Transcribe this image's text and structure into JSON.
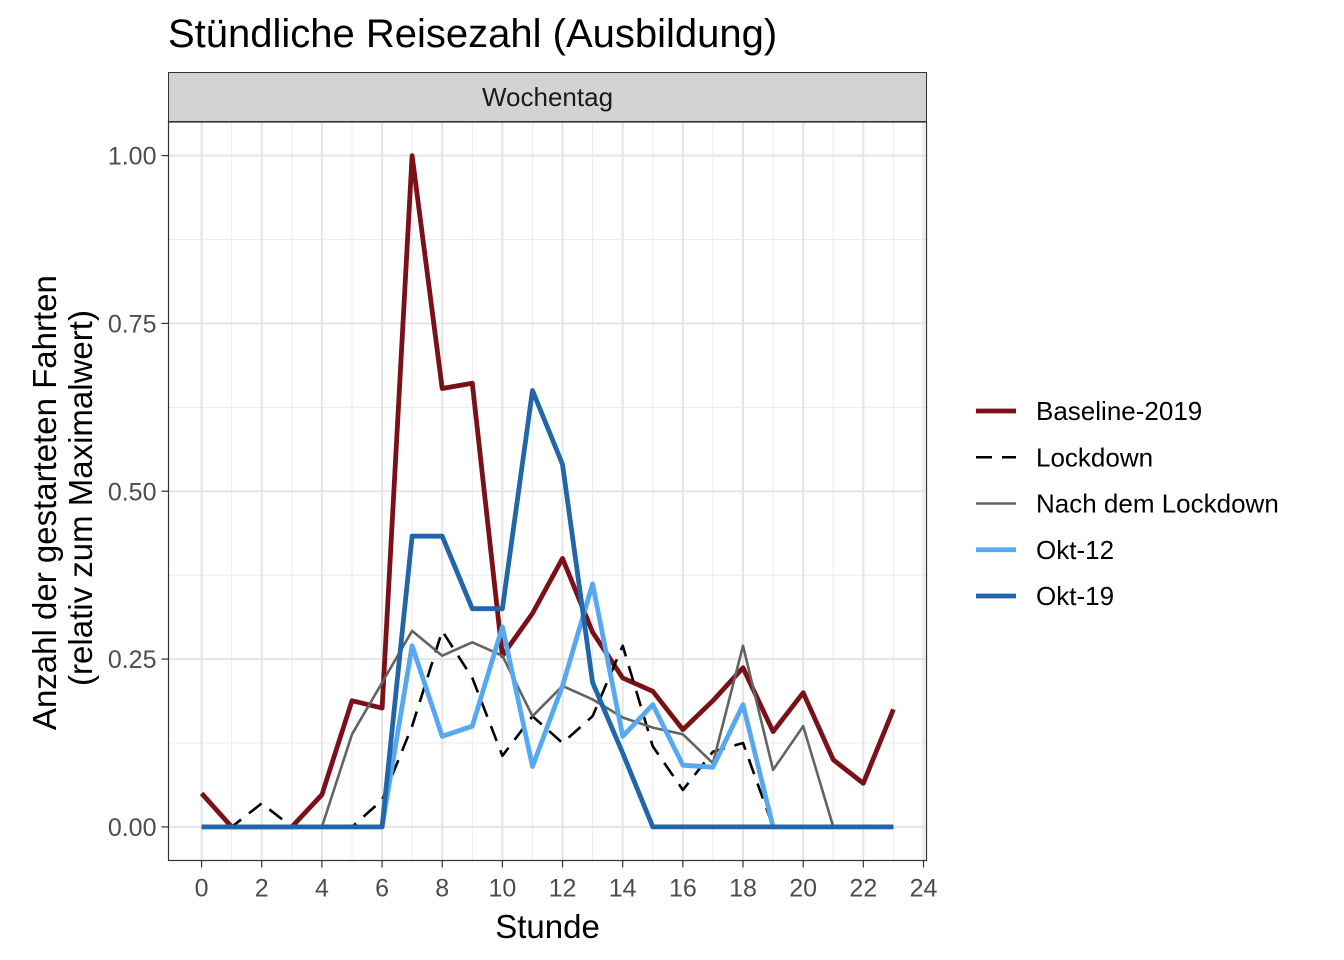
{
  "chart_data": {
    "type": "line",
    "title": "Stündliche Reisezahl (Ausbildung)",
    "facet_label": "Wochentag",
    "xlabel": "Stunde",
    "ylabel_lines": [
      "Anzahl der gestarteten Fahrten",
      "(relativ zum Maximalwert)"
    ],
    "xlim": [
      -1.1,
      24.1
    ],
    "ylim": [
      -0.05,
      1.05
    ],
    "x_ticks": [
      0,
      2,
      4,
      6,
      8,
      10,
      12,
      14,
      16,
      18,
      20,
      22,
      24
    ],
    "y_ticks": [
      0,
      0.25,
      0.5,
      0.75,
      1
    ],
    "y_tick_labels": [
      "0.00",
      "0.25",
      "0.50",
      "0.75",
      "1.00"
    ],
    "grid": true,
    "legend_position": "right",
    "series": [
      {
        "name": "Baseline-2019",
        "color": "#7b1018",
        "style": "solid-thick",
        "points": [
          [
            0,
            0.05
          ],
          [
            1,
            0
          ],
          [
            2,
            0
          ],
          [
            3,
            0
          ],
          [
            4,
            0.048
          ],
          [
            5,
            0.188
          ],
          [
            6,
            0.177
          ],
          [
            7,
            1.0
          ],
          [
            8,
            0.653
          ],
          [
            9,
            0.661
          ],
          [
            10,
            0.255
          ],
          [
            11,
            0.318
          ],
          [
            12,
            0.4
          ],
          [
            13,
            0.29
          ],
          [
            14,
            0.222
          ],
          [
            15,
            0.202
          ],
          [
            16,
            0.145
          ],
          [
            17,
            0.188
          ],
          [
            18,
            0.237
          ],
          [
            19,
            0.142
          ],
          [
            20,
            0.2
          ],
          [
            21,
            0.1
          ],
          [
            22,
            0.065
          ],
          [
            23,
            0.175
          ]
        ]
      },
      {
        "name": "Lockdown",
        "color": "#000000",
        "style": "dashed",
        "points": [
          [
            0,
            0
          ],
          [
            1,
            0
          ],
          [
            2,
            0.035
          ],
          [
            3,
            0
          ],
          [
            4,
            0
          ],
          [
            5,
            0
          ],
          [
            6,
            0.04
          ],
          [
            7,
            0.15
          ],
          [
            8,
            0.292
          ],
          [
            9,
            0.222
          ],
          [
            10,
            0.106
          ],
          [
            11,
            0.165
          ],
          [
            12,
            0.125
          ],
          [
            13,
            0.165
          ],
          [
            14,
            0.27
          ],
          [
            15,
            0.12
          ],
          [
            16,
            0.055
          ],
          [
            17,
            0.112
          ],
          [
            18,
            0.125
          ],
          [
            19,
            0
          ],
          [
            20,
            0
          ],
          [
            21,
            0
          ],
          [
            22,
            0
          ],
          [
            23,
            0
          ]
        ]
      },
      {
        "name": "Nach dem Lockdown",
        "color": "#636363",
        "style": "solid-thin",
        "points": [
          [
            0,
            0
          ],
          [
            1,
            0
          ],
          [
            2,
            0
          ],
          [
            3,
            0
          ],
          [
            4,
            0
          ],
          [
            5,
            0.138
          ],
          [
            6,
            0.215
          ],
          [
            7,
            0.292
          ],
          [
            8,
            0.255
          ],
          [
            9,
            0.275
          ],
          [
            10,
            0.255
          ],
          [
            11,
            0.165
          ],
          [
            12,
            0.21
          ],
          [
            13,
            0.19
          ],
          [
            14,
            0.163
          ],
          [
            15,
            0.148
          ],
          [
            16,
            0.138
          ],
          [
            17,
            0.095
          ],
          [
            18,
            0.27
          ],
          [
            19,
            0.085
          ],
          [
            20,
            0.15
          ],
          [
            21,
            0
          ],
          [
            22,
            0
          ],
          [
            23,
            0
          ]
        ]
      },
      {
        "name": "Okt-12",
        "color": "#56a8f0",
        "style": "solid-thick",
        "points": [
          [
            0,
            0
          ],
          [
            1,
            0
          ],
          [
            2,
            0
          ],
          [
            3,
            0
          ],
          [
            4,
            0
          ],
          [
            5,
            0
          ],
          [
            6,
            0
          ],
          [
            7,
            0.27
          ],
          [
            8,
            0.135
          ],
          [
            9,
            0.15
          ],
          [
            10,
            0.298
          ],
          [
            11,
            0.09
          ],
          [
            12,
            0.21
          ],
          [
            13,
            0.362
          ],
          [
            14,
            0.135
          ],
          [
            15,
            0.182
          ],
          [
            16,
            0.092
          ],
          [
            17,
            0.089
          ],
          [
            18,
            0.182
          ],
          [
            19,
            0
          ],
          [
            20,
            0
          ],
          [
            21,
            0
          ],
          [
            22,
            0
          ],
          [
            23,
            0
          ]
        ]
      },
      {
        "name": "Okt-19",
        "color": "#2066a8",
        "style": "solid-thick",
        "points": [
          [
            0,
            0
          ],
          [
            1,
            0
          ],
          [
            2,
            0
          ],
          [
            3,
            0
          ],
          [
            4,
            0
          ],
          [
            5,
            0
          ],
          [
            6,
            0
          ],
          [
            7,
            0.433
          ],
          [
            8,
            0.433
          ],
          [
            9,
            0.325
          ],
          [
            10,
            0.325
          ],
          [
            11,
            0.65
          ],
          [
            12,
            0.54
          ],
          [
            13,
            0.215
          ],
          [
            14,
            0.11
          ],
          [
            15,
            0
          ],
          [
            16,
            0
          ],
          [
            17,
            0
          ],
          [
            18,
            0
          ],
          [
            19,
            0
          ],
          [
            20,
            0
          ],
          [
            21,
            0
          ],
          [
            22,
            0
          ],
          [
            23,
            0
          ]
        ]
      }
    ]
  }
}
